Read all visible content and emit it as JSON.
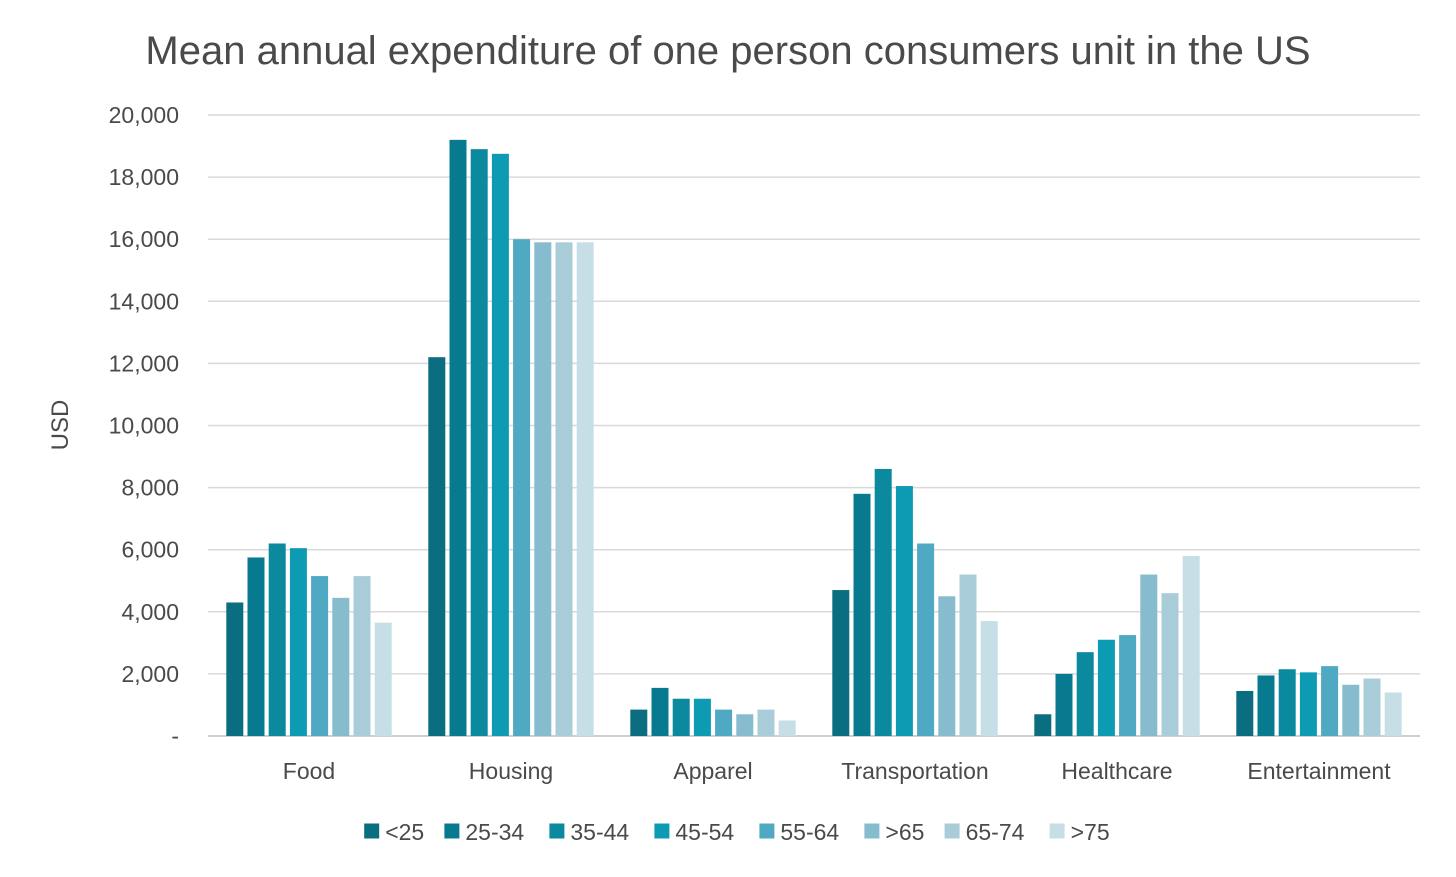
{
  "chart_data": {
    "type": "bar",
    "title": "Mean annual expenditure of one person consumers unit in the US",
    "xlabel": "",
    "ylabel": "USD",
    "ylim": [
      0,
      20000
    ],
    "yticks": [
      0,
      2000,
      4000,
      6000,
      8000,
      10000,
      12000,
      14000,
      16000,
      18000,
      20000
    ],
    "ytick_labels": [
      "-",
      "2,000",
      "4,000",
      "6,000",
      "8,000",
      "10,000",
      "12,000",
      "14,000",
      "16,000",
      "18,000",
      "20,000"
    ],
    "grid": true,
    "legend_position": "bottom",
    "categories": [
      "Food",
      "Housing",
      "Apparel",
      "Transportation",
      "Healthcare",
      "Entertainment"
    ],
    "series": [
      {
        "name": "<25",
        "color": "#0a6e80",
        "values": [
          4300,
          12200,
          850,
          4700,
          700,
          1450
        ]
      },
      {
        "name": "25-34",
        "color": "#087a8f",
        "values": [
          5750,
          19200,
          1550,
          7800,
          2000,
          1950
        ]
      },
      {
        "name": "35-44",
        "color": "#0a899f",
        "values": [
          6200,
          18900,
          1200,
          8600,
          2700,
          2150
        ]
      },
      {
        "name": "45-54",
        "color": "#0d9bb3",
        "values": [
          6050,
          18750,
          1200,
          8050,
          3100,
          2050
        ]
      },
      {
        "name": "55-64",
        "color": "#4fa9c2",
        "values": [
          5150,
          16000,
          850,
          6200,
          3250,
          2250
        ]
      },
      {
        "name": ">65",
        "color": "#86bcce",
        "values": [
          4450,
          15900,
          700,
          4500,
          5200,
          1650
        ]
      },
      {
        "name": "65-74",
        "color": "#a9ccd9",
        "values": [
          5150,
          15900,
          850,
          5200,
          4600,
          1850
        ]
      },
      {
        "name": ">75",
        "color": "#c6dee6",
        "values": [
          3650,
          15900,
          500,
          3700,
          5800,
          1400
        ]
      }
    ]
  }
}
